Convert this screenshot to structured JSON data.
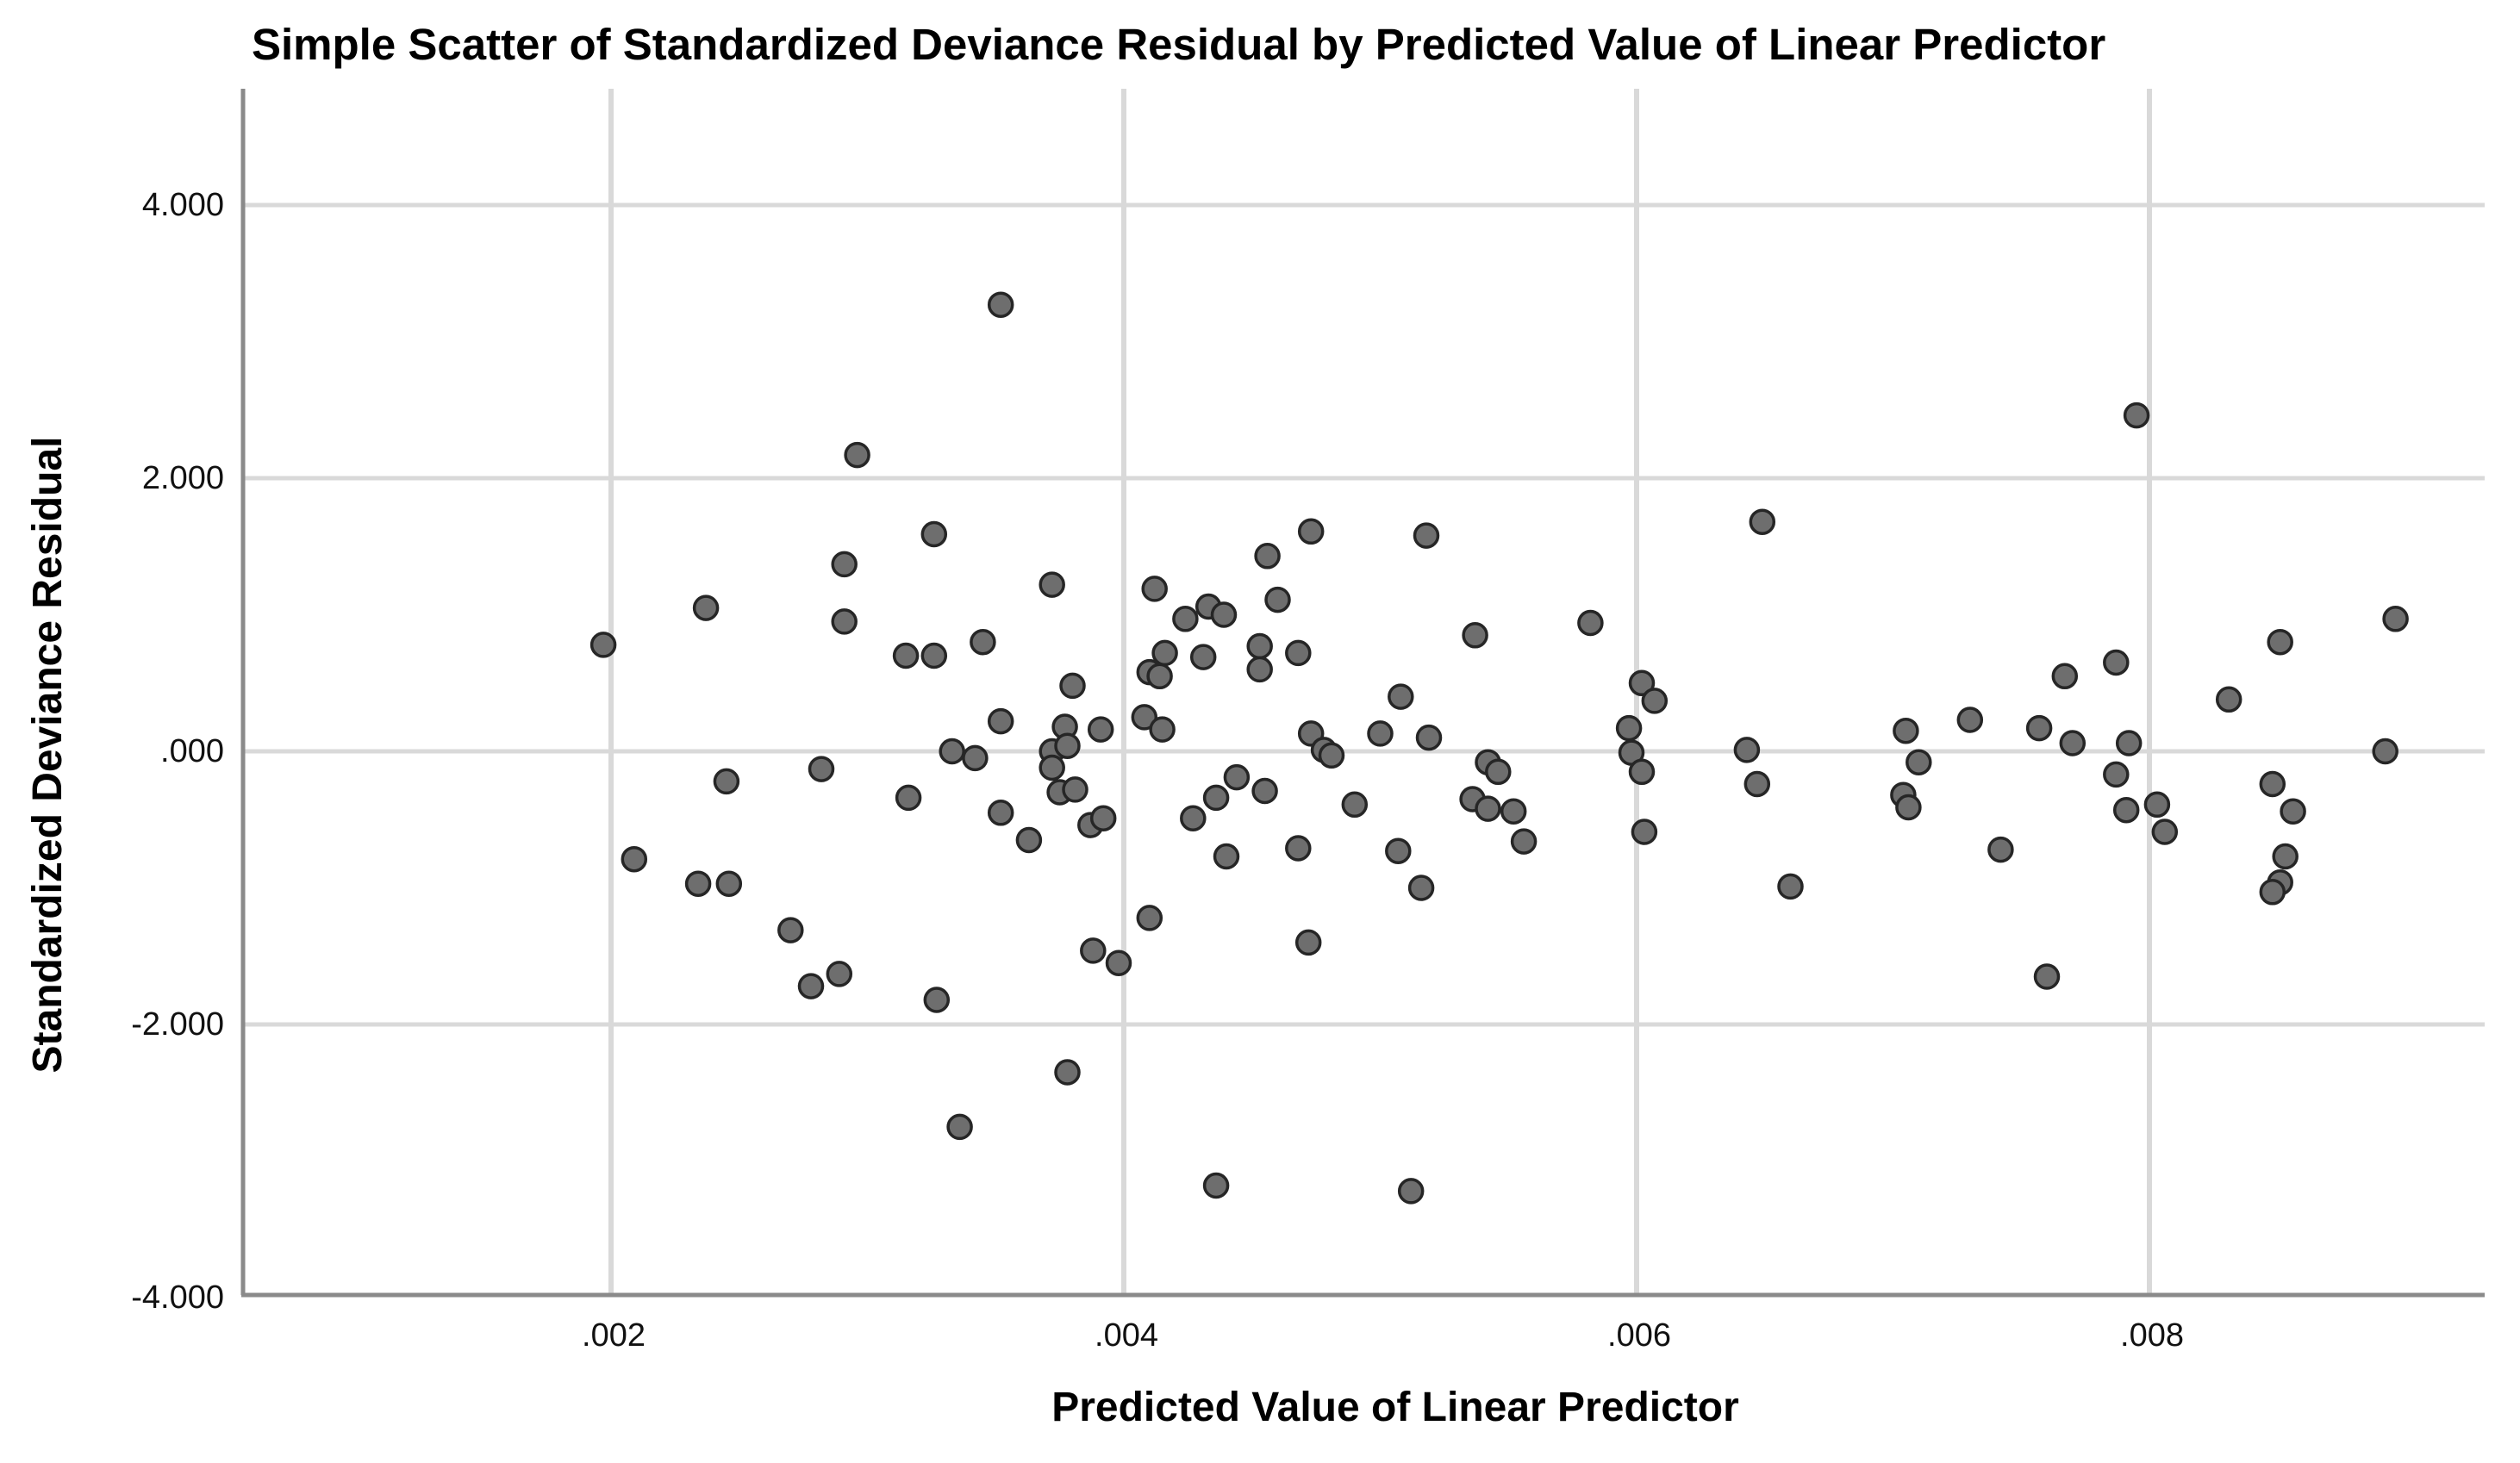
{
  "chart": {
    "title": "Simple Scatter of Standardized Deviance Residual by Predicted Value of Linear Predictor",
    "x_axis_label": "Predicted Value of Linear Predictor",
    "y_axis_label": "Standardized Deviance Residual"
  },
  "chart_data": {
    "type": "scatter",
    "title": "Simple Scatter of Standardized Deviance Residual by Predicted Value of Linear Predictor",
    "xlabel": "Predicted Value of Linear Predictor",
    "ylabel": "Standardized Deviance Residual",
    "xlim": [
      0.00058,
      0.00921
    ],
    "ylim": [
      -4.05,
      4.85
    ],
    "grid": true,
    "legend": "none",
    "x_ticks": [
      {
        "value": 0.002,
        "label": ".002"
      },
      {
        "value": 0.004,
        "label": ".004"
      },
      {
        "value": 0.006,
        "label": ".006"
      },
      {
        "value": 0.008,
        "label": ".008"
      }
    ],
    "y_ticks": [
      {
        "value": 4,
        "label": "4.000"
      },
      {
        "value": 2,
        "label": "2.000"
      },
      {
        "value": 0,
        "label": ".000"
      },
      {
        "value": -2,
        "label": "-2.000"
      },
      {
        "value": -4,
        "label": "-4.000"
      }
    ],
    "style": {
      "marker_fill": "#6e6e6e",
      "marker_stroke": "#262626",
      "gridline_color": "#d9d9d9",
      "axis_line_color": "#8a8a8a",
      "text_color": "#000000",
      "background": "#ffffff"
    },
    "points": [
      [
        0.00197,
        0.78
      ],
      [
        0.00237,
        1.05
      ],
      [
        0.00209,
        -0.79
      ],
      [
        0.00245,
        -0.22
      ],
      [
        0.00234,
        -0.97
      ],
      [
        0.00246,
        -0.97
      ],
      [
        0.0027,
        -1.31
      ],
      [
        0.00278,
        -1.72
      ],
      [
        0.00289,
        -1.63
      ],
      [
        0.00352,
        3.27
      ],
      [
        0.00296,
        2.17
      ],
      [
        0.00326,
        1.59
      ],
      [
        0.00291,
        1.37
      ],
      [
        0.00372,
        1.22
      ],
      [
        0.00412,
        1.19
      ],
      [
        0.00456,
        1.43
      ],
      [
        0.00473,
        1.61
      ],
      [
        0.0046,
        1.11
      ],
      [
        0.00291,
        0.95
      ],
      [
        0.00345,
        0.8
      ],
      [
        0.00315,
        0.7
      ],
      [
        0.00326,
        0.7
      ],
      [
        0.00424,
        0.97
      ],
      [
        0.00433,
        1.06
      ],
      [
        0.00439,
        1.0
      ],
      [
        0.0038,
        0.48
      ],
      [
        0.00352,
        0.22
      ],
      [
        0.00377,
        0.18
      ],
      [
        0.00391,
        0.16
      ],
      [
        0.00372,
        0.0
      ],
      [
        0.00378,
        0.04
      ],
      [
        0.00372,
        -0.12
      ],
      [
        0.00333,
        0.0
      ],
      [
        0.00342,
        -0.05
      ],
      [
        0.00375,
        -0.3
      ],
      [
        0.00381,
        -0.28
      ],
      [
        0.00352,
        -0.45
      ],
      [
        0.00363,
        -0.65
      ],
      [
        0.00387,
        -0.54
      ],
      [
        0.00392,
        -0.49
      ],
      [
        0.00408,
        0.25
      ],
      [
        0.00415,
        0.16
      ],
      [
        0.00416,
        0.72
      ],
      [
        0.0041,
        0.58
      ],
      [
        0.00414,
        0.55
      ],
      [
        0.00431,
        0.69
      ],
      [
        0.00453,
        0.77
      ],
      [
        0.00453,
        0.6
      ],
      [
        0.00468,
        0.72
      ],
      [
        0.00282,
        -0.13
      ],
      [
        0.00316,
        -0.34
      ],
      [
        0.00388,
        -1.46
      ],
      [
        0.00398,
        -1.55
      ],
      [
        0.0041,
        -1.22
      ],
      [
        0.00378,
        -2.35
      ],
      [
        0.00336,
        -2.75
      ],
      [
        0.00436,
        -3.18
      ],
      [
        0.00327,
        -1.82
      ],
      [
        0.00427,
        -0.49
      ],
      [
        0.00436,
        -0.34
      ],
      [
        0.00444,
        -0.19
      ],
      [
        0.00455,
        -0.29
      ],
      [
        0.0044,
        -0.77
      ],
      [
        0.00468,
        -0.71
      ],
      [
        0.00473,
        0.13
      ],
      [
        0.00478,
        0.01
      ],
      [
        0.00481,
        -0.03
      ],
      [
        0.0049,
        -0.39
      ],
      [
        0.00472,
        -1.4
      ],
      [
        0.00518,
        1.58
      ],
      [
        0.00649,
        1.68
      ],
      [
        0.00537,
        0.85
      ],
      [
        0.00582,
        0.94
      ],
      [
        0.00602,
        0.5
      ],
      [
        0.00607,
        0.37
      ],
      [
        0.00508,
        0.4
      ],
      [
        0.005,
        0.13
      ],
      [
        0.00519,
        0.1
      ],
      [
        0.00542,
        -0.08
      ],
      [
        0.00546,
        -0.15
      ],
      [
        0.00536,
        -0.35
      ],
      [
        0.00542,
        -0.42
      ],
      [
        0.00552,
        -0.44
      ],
      [
        0.00556,
        -0.66
      ],
      [
        0.00507,
        -0.73
      ],
      [
        0.00516,
        -1.0
      ],
      [
        0.00597,
        0.17
      ],
      [
        0.00598,
        -0.01
      ],
      [
        0.00602,
        -0.15
      ],
      [
        0.00603,
        -0.59
      ],
      [
        0.00643,
        0.01
      ],
      [
        0.00647,
        -0.24
      ],
      [
        0.0066,
        -0.99
      ],
      [
        0.00512,
        -3.22
      ],
      [
        0.00705,
        0.15
      ],
      [
        0.0071,
        -0.08
      ],
      [
        0.00704,
        -0.32
      ],
      [
        0.00706,
        -0.41
      ],
      [
        0.00795,
        2.46
      ],
      [
        0.00851,
        0.8
      ],
      [
        0.00896,
        0.97
      ],
      [
        0.00787,
        0.65
      ],
      [
        0.00767,
        0.55
      ],
      [
        0.0073,
        0.23
      ],
      [
        0.00757,
        0.17
      ],
      [
        0.0077,
        0.06
      ],
      [
        0.00792,
        0.06
      ],
      [
        0.00831,
        0.38
      ],
      [
        0.00787,
        -0.17
      ],
      [
        0.00791,
        -0.43
      ],
      [
        0.00803,
        -0.39
      ],
      [
        0.00806,
        -0.59
      ],
      [
        0.00742,
        -0.72
      ],
      [
        0.00848,
        -0.24
      ],
      [
        0.00856,
        -0.44
      ],
      [
        0.00853,
        -0.77
      ],
      [
        0.00851,
        -0.96
      ],
      [
        0.00848,
        -1.03
      ],
      [
        0.0076,
        -1.65
      ],
      [
        0.00892,
        0.0
      ]
    ]
  }
}
